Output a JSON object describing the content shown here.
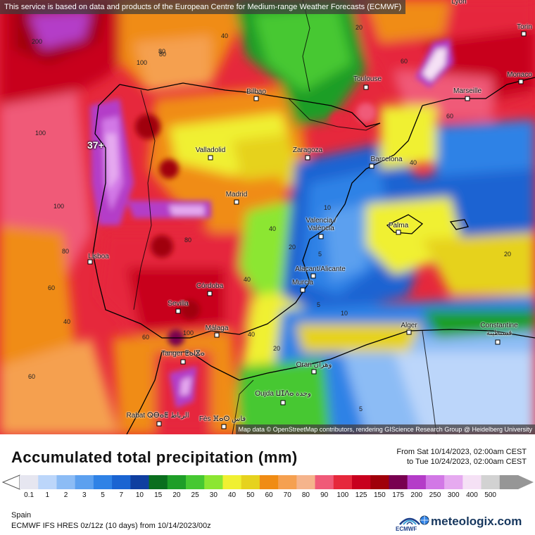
{
  "header": {
    "notice": "This service is based on data and products of the European Centre for Medium-range Weather Forecasts (ECMWF)"
  },
  "map": {
    "max_label": "37+",
    "attribution": "Map data © OpenStreetMap contributors, rendering GIScience Research Group @ Heidelberg University",
    "cities": [
      {
        "name": "Lyon"
      },
      {
        "name": "Torin"
      },
      {
        "name": "Monaco"
      },
      {
        "name": "Bilbao"
      },
      {
        "name": "Toulouse"
      },
      {
        "name": "Marseille"
      },
      {
        "name": "Valladolid"
      },
      {
        "name": "Zaragoza"
      },
      {
        "name": "Barcelona"
      },
      {
        "name": "Madrid"
      },
      {
        "name": "Valencia / València"
      },
      {
        "name": "Palma"
      },
      {
        "name": "Lisboa"
      },
      {
        "name": "Alacant/Alicante"
      },
      {
        "name": "Murcia"
      },
      {
        "name": "Córdoba"
      },
      {
        "name": "Sevilla"
      },
      {
        "name": "Málaga"
      },
      {
        "name": "Alger"
      },
      {
        "name": "Constantine قسنطينة"
      },
      {
        "name": "Tanger ⵟⴰⵏⴵⴰ"
      },
      {
        "name": "Oran وهران"
      },
      {
        "name": "Oujda ⵡⵊⴷⴰ وجدة"
      },
      {
        "name": "Rabat ⵕⴱⴰⵟ الرباط"
      },
      {
        "name": "Fès ⴼⴰⵙ فاس"
      }
    ],
    "contour_labels": [
      "200",
      "100",
      "80",
      "40",
      "20",
      "60",
      "100",
      "80",
      "40",
      "100",
      "60",
      "40",
      "20",
      "10",
      "5",
      "40",
      "60",
      "20",
      "5",
      "10",
      "5",
      "80",
      "60",
      "40",
      "100",
      "80",
      "60",
      "40",
      "20"
    ]
  },
  "legend": {
    "title": "Accumulated total precipitation (mm)",
    "from": "From Sat 10/14/2023, 02:00am CEST",
    "to": "to Tue 10/24/2023, 02:00am CEST",
    "bins": [
      "0.1",
      "1",
      "2",
      "3",
      "5",
      "7",
      "10",
      "15",
      "20",
      "25",
      "30",
      "40",
      "50",
      "60",
      "70",
      "80",
      "90",
      "100",
      "125",
      "150",
      "175",
      "200",
      "250",
      "300",
      "400",
      "500"
    ],
    "colors": [
      "#e6e6f0",
      "#bcd6fa",
      "#8cbcf5",
      "#5ca0ef",
      "#2f82e6",
      "#1a64d2",
      "#0f3fa0",
      "#0a6e1e",
      "#1e9e28",
      "#46c832",
      "#8ce632",
      "#f0f032",
      "#e6d21e",
      "#f08c14",
      "#f5a050",
      "#f5b48c",
      "#f05a78",
      "#e6283c",
      "#c8001e",
      "#a0000a",
      "#780050",
      "#b43cc8",
      "#d278e6",
      "#e6aaf0",
      "#f5e1f5",
      "#d2d2d2",
      "#969696"
    ],
    "region": "Spain",
    "model": "ECMWF IFS HRES 0z/12z (10 days) from 10/14/2023/00z",
    "ecmwf_logo": "ECMWF",
    "brand": "meteologix.com"
  },
  "icons": [
    "ecmwf-logo-icon",
    "meteologix-globe-icon"
  ]
}
